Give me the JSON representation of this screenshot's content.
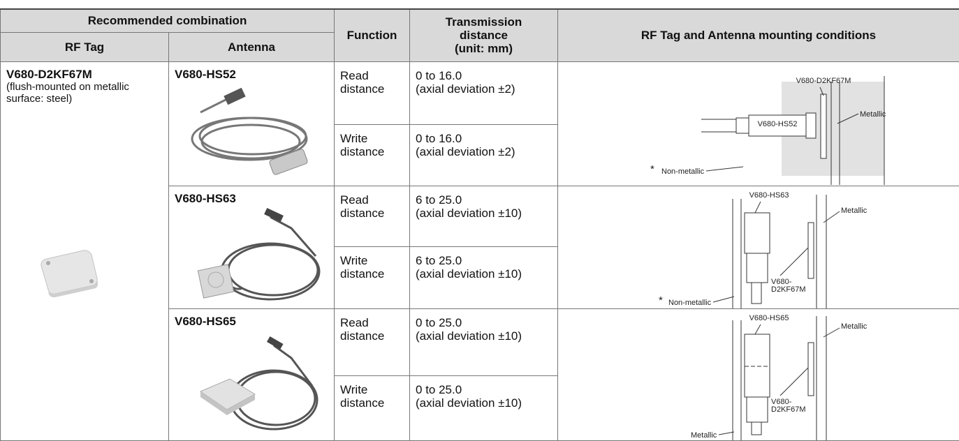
{
  "header": {
    "recommended_combination": "Recommended combination",
    "rf_tag": "RF Tag",
    "antenna": "Antenna",
    "function": "Function",
    "transmission_distance": [
      "Transmission",
      "distance",
      "(unit: mm)"
    ],
    "mounting_conditions": "RF Tag and Antenna mounting conditions"
  },
  "rf_tag": {
    "name": "V680-D2KF67M",
    "note": "(flush-mounted on metallic surface: steel)"
  },
  "groups": [
    {
      "antenna": "V680-HS52",
      "rows": [
        {
          "function": "Read distance",
          "range": "0 to 16.0",
          "deviation": "(axial deviation ±2)"
        },
        {
          "function": "Write distance",
          "range": "0 to 16.0",
          "deviation": "(axial deviation ±2)"
        }
      ],
      "diagram": {
        "tag": "V680-D2KF67M",
        "metal": "Metallic",
        "antenna": "V680-HS52",
        "asterisk": "*",
        "other": "Non-metallic"
      }
    },
    {
      "antenna": "V680-HS63",
      "rows": [
        {
          "function": "Read distance",
          "range": "6 to 25.0",
          "deviation": "(axial deviation ±10)"
        },
        {
          "function": "Write distance",
          "range": "6 to 25.0",
          "deviation": "(axial deviation ±10)"
        }
      ],
      "diagram": {
        "antenna": "V680-HS63",
        "metal": "Metallic",
        "tag": [
          "V680-",
          "D2KF67M"
        ],
        "asterisk": "*",
        "other": "Non-metallic"
      }
    },
    {
      "antenna": "V680-HS65",
      "rows": [
        {
          "function": "Read distance",
          "range": "0 to 25.0",
          "deviation": "(axial deviation ±10)"
        },
        {
          "function": "Write distance",
          "range": "0 to 25.0",
          "deviation": "(axial deviation ±10)"
        }
      ],
      "diagram": {
        "antenna": "V680-HS65",
        "metal": "Metallic",
        "tag": [
          "V680-",
          "D2KF67M"
        ],
        "other": "Metallic"
      }
    }
  ]
}
